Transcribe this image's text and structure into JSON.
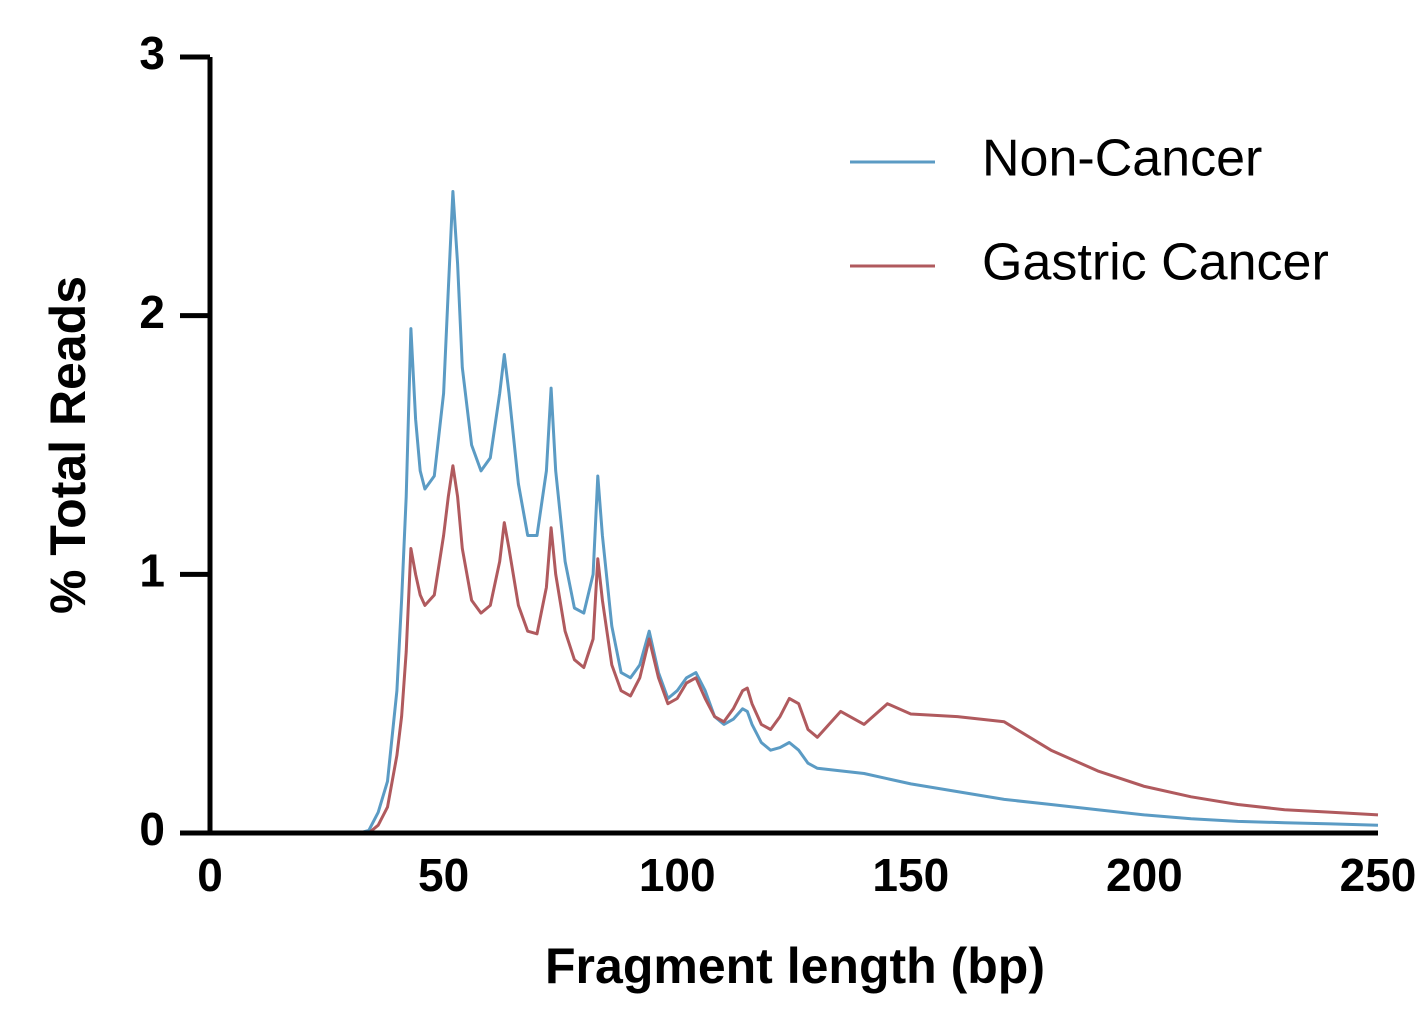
{
  "chart_data": {
    "type": "line",
    "xlabel": "Fragment length (bp)",
    "ylabel": "% Total Reads",
    "x": [
      30,
      32,
      34,
      36,
      38,
      40,
      41,
      42,
      43,
      44,
      45,
      46,
      48,
      50,
      51,
      52,
      53,
      54,
      56,
      58,
      60,
      62,
      63,
      64,
      66,
      68,
      70,
      72,
      73,
      74,
      76,
      78,
      80,
      82,
      83,
      84,
      86,
      88,
      90,
      92,
      94,
      96,
      98,
      100,
      102,
      104,
      106,
      108,
      110,
      112,
      114,
      115,
      116,
      118,
      120,
      122,
      124,
      126,
      128,
      130,
      135,
      140,
      145,
      150,
      160,
      170,
      180,
      190,
      200,
      210,
      220,
      230,
      240,
      250
    ],
    "series": [
      {
        "name": "Non-Cancer",
        "color": "#5b9bc4",
        "values": [
          0,
          0,
          0.01,
          0.08,
          0.2,
          0.55,
          0.9,
          1.3,
          1.95,
          1.6,
          1.4,
          1.33,
          1.38,
          1.7,
          2.1,
          2.48,
          2.2,
          1.8,
          1.5,
          1.4,
          1.45,
          1.7,
          1.85,
          1.7,
          1.35,
          1.15,
          1.15,
          1.4,
          1.72,
          1.4,
          1.05,
          0.87,
          0.85,
          1.0,
          1.38,
          1.15,
          0.8,
          0.62,
          0.6,
          0.65,
          0.78,
          0.62,
          0.52,
          0.55,
          0.6,
          0.62,
          0.55,
          0.45,
          0.42,
          0.44,
          0.48,
          0.47,
          0.42,
          0.35,
          0.32,
          0.33,
          0.35,
          0.32,
          0.27,
          0.25,
          0.24,
          0.23,
          0.21,
          0.19,
          0.16,
          0.13,
          0.11,
          0.09,
          0.07,
          0.055,
          0.045,
          0.04,
          0.035,
          0.03
        ]
      },
      {
        "name": "Gastric Cancer",
        "color": "#b05a5e",
        "values": [
          0,
          0,
          0,
          0.03,
          0.1,
          0.3,
          0.45,
          0.7,
          1.1,
          1.0,
          0.92,
          0.88,
          0.92,
          1.15,
          1.3,
          1.42,
          1.3,
          1.1,
          0.9,
          0.85,
          0.88,
          1.05,
          1.2,
          1.1,
          0.88,
          0.78,
          0.77,
          0.95,
          1.18,
          1.0,
          0.78,
          0.67,
          0.64,
          0.75,
          1.06,
          0.9,
          0.65,
          0.55,
          0.53,
          0.6,
          0.75,
          0.6,
          0.5,
          0.52,
          0.58,
          0.6,
          0.52,
          0.45,
          0.43,
          0.48,
          0.55,
          0.56,
          0.5,
          0.42,
          0.4,
          0.45,
          0.52,
          0.5,
          0.4,
          0.37,
          0.47,
          0.42,
          0.5,
          0.46,
          0.45,
          0.43,
          0.32,
          0.24,
          0.18,
          0.14,
          0.11,
          0.09,
          0.08,
          0.07
        ]
      }
    ],
    "xlim": [
      0,
      250
    ],
    "xticks": [
      0,
      50,
      100,
      150,
      200,
      250
    ],
    "ylim": [
      0,
      3
    ],
    "yticks": [
      0,
      1,
      2,
      3
    ],
    "legend": "upper right",
    "grid": false
  }
}
